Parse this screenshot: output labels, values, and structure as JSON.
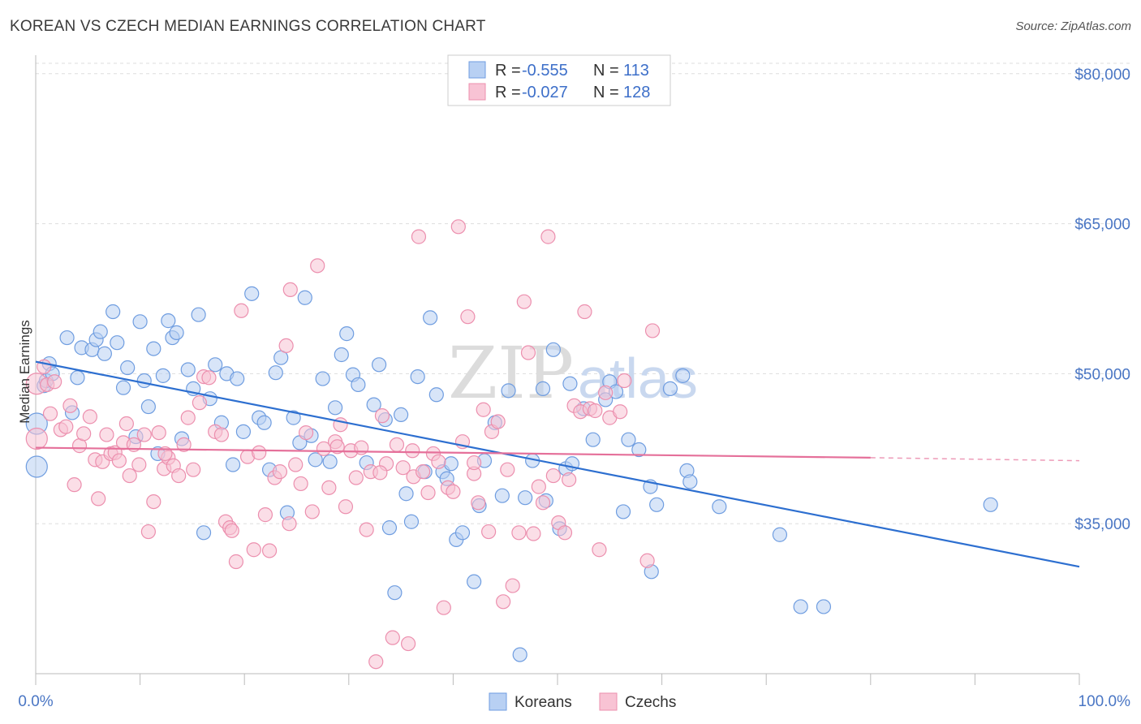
{
  "title": "KOREAN VS CZECH MEDIAN EARNINGS CORRELATION CHART",
  "source": "Source: ZipAtlas.com",
  "watermark": {
    "zip": "ZIP",
    "atlas": "atlas"
  },
  "colors": {
    "korean_fill": "#b8d0f3",
    "korean_stroke": "#6f9de0",
    "korean_line": "#2d6fd0",
    "czech_fill": "#f8c3d4",
    "czech_stroke": "#ec8fae",
    "czech_line": "#e5709a",
    "grid": "#dddddd",
    "tick_label": "#4a76c4"
  },
  "legend": {
    "rows": [
      {
        "r_label": "R =",
        "r_value": "-0.555",
        "n_label": "N =",
        "n_value": "113",
        "series": "Koreans"
      },
      {
        "r_label": "R =",
        "r_value": "-0.027",
        "n_label": "N =",
        "n_value": "128",
        "series": "Czechs"
      }
    ]
  },
  "bottom_legend": [
    "Koreans",
    "Czechs"
  ],
  "chart_data": {
    "type": "scatter",
    "title": "KOREAN VS CZECH MEDIAN EARNINGS CORRELATION CHART",
    "xlabel": "",
    "ylabel": "Median Earnings",
    "xlim": [
      0,
      100
    ],
    "ylim": [
      20000,
      82500
    ],
    "x_tick_labels": [
      "0.0%",
      "100.0%"
    ],
    "y_ticks": [
      35000,
      50000,
      65000,
      80000
    ],
    "y_tick_labels": [
      "$35,000",
      "$50,000",
      "$65,000",
      "$80,000"
    ],
    "grid": true,
    "legend_position": "top-center",
    "series": [
      {
        "name": "Koreans",
        "r": -0.555,
        "n": 113,
        "trend": {
          "x": [
            0,
            100
          ],
          "y": [
            51200,
            30700
          ]
        },
        "points": [
          [
            0.1,
            45000
          ],
          [
            0.1,
            40700
          ],
          [
            0.8,
            48800
          ],
          [
            1.0,
            49300
          ],
          [
            1.3,
            51000
          ],
          [
            1.6,
            50000
          ],
          [
            3.0,
            53600
          ],
          [
            3.5,
            46100
          ],
          [
            4.0,
            49600
          ],
          [
            4.4,
            52600
          ],
          [
            5.4,
            52400
          ],
          [
            5.8,
            53400
          ],
          [
            6.2,
            54200
          ],
          [
            6.6,
            52000
          ],
          [
            7.4,
            56200
          ],
          [
            7.8,
            53100
          ],
          [
            8.4,
            48600
          ],
          [
            8.8,
            50600
          ],
          [
            9.6,
            43700
          ],
          [
            10.0,
            55200
          ],
          [
            10.4,
            49300
          ],
          [
            10.8,
            46700
          ],
          [
            11.3,
            52500
          ],
          [
            11.7,
            42000
          ],
          [
            12.2,
            49800
          ],
          [
            12.7,
            55300
          ],
          [
            13.1,
            53600
          ],
          [
            13.5,
            54100
          ],
          [
            14.0,
            43500
          ],
          [
            14.6,
            50400
          ],
          [
            15.1,
            48500
          ],
          [
            15.6,
            55900
          ],
          [
            16.1,
            34100
          ],
          [
            16.7,
            47500
          ],
          [
            17.2,
            50900
          ],
          [
            17.8,
            45100
          ],
          [
            18.3,
            50000
          ],
          [
            18.9,
            40900
          ],
          [
            19.3,
            49500
          ],
          [
            19.9,
            44200
          ],
          [
            20.7,
            58000
          ],
          [
            21.4,
            45600
          ],
          [
            21.9,
            45100
          ],
          [
            22.4,
            40400
          ],
          [
            23.0,
            50100
          ],
          [
            23.5,
            51600
          ],
          [
            24.1,
            36100
          ],
          [
            24.7,
            45600
          ],
          [
            25.3,
            43100
          ],
          [
            25.8,
            57600
          ],
          [
            26.4,
            43800
          ],
          [
            26.8,
            41400
          ],
          [
            27.5,
            49500
          ],
          [
            28.2,
            41200
          ],
          [
            28.7,
            46600
          ],
          [
            29.3,
            51900
          ],
          [
            29.8,
            54000
          ],
          [
            30.4,
            49900
          ],
          [
            30.9,
            48900
          ],
          [
            31.7,
            41100
          ],
          [
            32.4,
            46900
          ],
          [
            32.9,
            50900
          ],
          [
            33.5,
            45400
          ],
          [
            33.9,
            34600
          ],
          [
            34.4,
            28100
          ],
          [
            35.0,
            45900
          ],
          [
            35.5,
            38000
          ],
          [
            36.0,
            35200
          ],
          [
            36.6,
            49700
          ],
          [
            37.3,
            40200
          ],
          [
            37.8,
            55600
          ],
          [
            38.4,
            47900
          ],
          [
            39.0,
            40200
          ],
          [
            39.4,
            39500
          ],
          [
            39.8,
            41000
          ],
          [
            40.3,
            33400
          ],
          [
            40.9,
            34100
          ],
          [
            42.0,
            29200
          ],
          [
            42.5,
            36800
          ],
          [
            43.0,
            41300
          ],
          [
            44.0,
            45100
          ],
          [
            44.7,
            37800
          ],
          [
            45.3,
            48300
          ],
          [
            46.4,
            21900
          ],
          [
            46.9,
            37600
          ],
          [
            47.6,
            41300
          ],
          [
            48.6,
            48500
          ],
          [
            48.9,
            37300
          ],
          [
            49.6,
            52400
          ],
          [
            50.2,
            34500
          ],
          [
            50.8,
            40500
          ],
          [
            51.2,
            49000
          ],
          [
            51.4,
            41000
          ],
          [
            52.5,
            46500
          ],
          [
            53.4,
            43400
          ],
          [
            54.6,
            47400
          ],
          [
            55.0,
            49200
          ],
          [
            55.6,
            48200
          ],
          [
            56.3,
            36200
          ],
          [
            56.8,
            43400
          ],
          [
            57.8,
            42400
          ],
          [
            58.9,
            38700
          ],
          [
            59.0,
            30200
          ],
          [
            59.5,
            36900
          ],
          [
            60.8,
            48500
          ],
          [
            62.0,
            49800
          ],
          [
            62.4,
            40300
          ],
          [
            62.7,
            39200
          ],
          [
            65.5,
            36700
          ],
          [
            71.3,
            33900
          ],
          [
            73.3,
            26700
          ],
          [
            75.5,
            26700
          ],
          [
            91.5,
            36900
          ]
        ]
      },
      {
        "name": "Czechs",
        "r": -0.027,
        "n": 128,
        "trend": {
          "x": [
            0,
            80
          ],
          "y": [
            42600,
            41600
          ]
        },
        "trend_dashed": {
          "x": [
            80,
            100
          ],
          "y": [
            41600,
            41300
          ]
        },
        "points": [
          [
            0.1,
            49000
          ],
          [
            0.1,
            43500
          ],
          [
            0.8,
            50700
          ],
          [
            1.1,
            48900
          ],
          [
            1.4,
            46000
          ],
          [
            1.8,
            49200
          ],
          [
            2.4,
            44400
          ],
          [
            2.9,
            44700
          ],
          [
            3.3,
            46800
          ],
          [
            3.7,
            38900
          ],
          [
            4.2,
            42800
          ],
          [
            4.6,
            44000
          ],
          [
            5.2,
            45700
          ],
          [
            5.7,
            41400
          ],
          [
            6.0,
            37500
          ],
          [
            6.4,
            41200
          ],
          [
            6.8,
            43900
          ],
          [
            7.2,
            42000
          ],
          [
            7.6,
            42100
          ],
          [
            8.0,
            41300
          ],
          [
            8.4,
            43100
          ],
          [
            8.7,
            45000
          ],
          [
            9.0,
            39800
          ],
          [
            9.4,
            42900
          ],
          [
            9.9,
            40900
          ],
          [
            10.4,
            43900
          ],
          [
            10.8,
            34200
          ],
          [
            11.3,
            37200
          ],
          [
            11.8,
            44100
          ],
          [
            12.3,
            40500
          ],
          [
            12.7,
            41600
          ],
          [
            13.2,
            40800
          ],
          [
            13.7,
            39800
          ],
          [
            14.2,
            42900
          ],
          [
            14.6,
            45600
          ],
          [
            15.1,
            40400
          ],
          [
            15.7,
            47100
          ],
          [
            16.1,
            49700
          ],
          [
            16.6,
            49600
          ],
          [
            17.2,
            44200
          ],
          [
            17.8,
            43900
          ],
          [
            18.2,
            35200
          ],
          [
            18.6,
            34600
          ],
          [
            19.2,
            31200
          ],
          [
            19.7,
            56300
          ],
          [
            20.3,
            41700
          ],
          [
            20.9,
            32400
          ],
          [
            21.4,
            42100
          ],
          [
            22.0,
            35900
          ],
          [
            22.4,
            32300
          ],
          [
            22.9,
            39600
          ],
          [
            23.4,
            40200
          ],
          [
            24.0,
            52800
          ],
          [
            24.4,
            58400
          ],
          [
            24.9,
            40900
          ],
          [
            25.4,
            39000
          ],
          [
            25.9,
            44100
          ],
          [
            26.5,
            36200
          ],
          [
            27.0,
            60800
          ],
          [
            27.6,
            42500
          ],
          [
            28.1,
            38600
          ],
          [
            28.7,
            43200
          ],
          [
            29.2,
            44900
          ],
          [
            29.7,
            36700
          ],
          [
            30.2,
            42300
          ],
          [
            30.7,
            39600
          ],
          [
            31.2,
            42600
          ],
          [
            31.7,
            34400
          ],
          [
            32.1,
            40200
          ],
          [
            32.6,
            21200
          ],
          [
            33.2,
            45800
          ],
          [
            33.6,
            41000
          ],
          [
            34.2,
            23600
          ],
          [
            34.6,
            42900
          ],
          [
            35.2,
            40600
          ],
          [
            35.7,
            23000
          ],
          [
            36.2,
            39700
          ],
          [
            36.7,
            63700
          ],
          [
            37.1,
            40200
          ],
          [
            37.6,
            38100
          ],
          [
            38.1,
            42000
          ],
          [
            38.6,
            41200
          ],
          [
            39.1,
            26600
          ],
          [
            39.5,
            38600
          ],
          [
            40.0,
            38200
          ],
          [
            40.5,
            64700
          ],
          [
            40.9,
            43200
          ],
          [
            41.4,
            55700
          ],
          [
            42.0,
            40000
          ],
          [
            42.4,
            37100
          ],
          [
            42.9,
            46400
          ],
          [
            43.4,
            34200
          ],
          [
            43.7,
            44200
          ],
          [
            44.3,
            45200
          ],
          [
            44.8,
            27200
          ],
          [
            45.2,
            40400
          ],
          [
            45.7,
            28800
          ],
          [
            46.3,
            34100
          ],
          [
            46.8,
            57200
          ],
          [
            47.2,
            52100
          ],
          [
            47.7,
            34000
          ],
          [
            48.2,
            38700
          ],
          [
            48.6,
            37100
          ],
          [
            49.1,
            63700
          ],
          [
            49.6,
            39800
          ],
          [
            50.1,
            35100
          ],
          [
            50.7,
            34100
          ],
          [
            51.1,
            39400
          ],
          [
            51.6,
            46800
          ],
          [
            52.2,
            46200
          ],
          [
            52.6,
            56200
          ],
          [
            53.1,
            46500
          ],
          [
            53.6,
            46300
          ],
          [
            54.0,
            32400
          ],
          [
            54.6,
            48100
          ],
          [
            55.0,
            45600
          ],
          [
            56.0,
            46200
          ],
          [
            56.4,
            49300
          ],
          [
            58.6,
            31300
          ],
          [
            59.1,
            54300
          ],
          [
            42.0,
            41100
          ],
          [
            28.9,
            42700
          ],
          [
            33.0,
            40100
          ],
          [
            36.1,
            42300
          ],
          [
            24.3,
            35000
          ],
          [
            18.8,
            34300
          ],
          [
            12.4,
            42000
          ]
        ]
      }
    ]
  }
}
